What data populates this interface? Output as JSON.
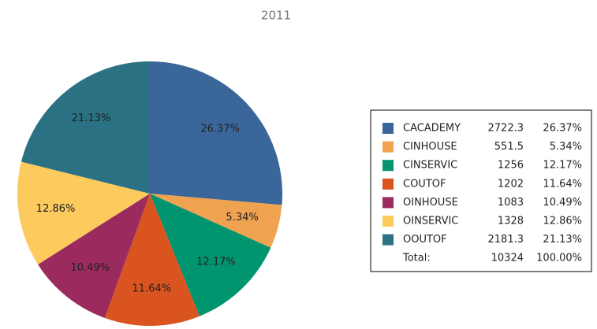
{
  "chart_data": {
    "type": "pie",
    "title": "2011",
    "categories": [
      "CACADEMY",
      "CINHOUSE",
      "CINSERVIC",
      "COUTOF",
      "OINHOUSE",
      "OINSERVIC",
      "OOUTOF"
    ],
    "values": [
      2722.3,
      551.5,
      1256,
      1202,
      1083,
      1328,
      2181.3
    ],
    "value_labels": [
      "26.37%",
      "5.34%",
      "12.17%",
      "11.64%",
      "10.49%",
      "12.86%",
      "21.13%"
    ],
    "colors": [
      "#3b6699",
      "#efa250",
      "#00946f",
      "#d9541f",
      "#9b2b5f",
      "#fcca5d",
      "#2a7283"
    ],
    "total_label": "Total:",
    "total": 10324,
    "total_percent": "100.00%"
  }
}
